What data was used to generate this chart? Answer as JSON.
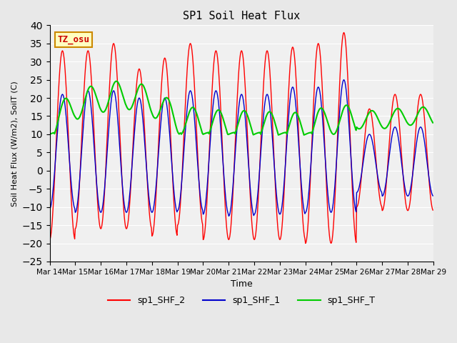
{
  "title": "SP1 Soil Heat Flux",
  "xlabel": "Time",
  "ylabel": "Soil Heat Flux (W/m2), SoilT (C)",
  "ylim": [
    -25,
    40
  ],
  "yticks": [
    -25,
    -20,
    -15,
    -10,
    -5,
    0,
    5,
    10,
    15,
    20,
    25,
    30,
    35,
    40
  ],
  "xtick_labels": [
    "Mar 14",
    "Mar 15",
    "Mar 16",
    "Mar 17",
    "Mar 18",
    "Mar 19",
    "Mar 20",
    "Mar 21",
    "Mar 22",
    "Mar 23",
    "Mar 24",
    "Mar 25",
    "Mar 26",
    "Mar 27",
    "Mar 28",
    "Mar 29"
  ],
  "color_shf2": "#FF0000",
  "color_shf1": "#0000CC",
  "color_shft": "#00CC00",
  "legend_labels": [
    "sp1_SHF_2",
    "sp1_SHF_1",
    "sp1_SHF_T"
  ],
  "tz_label": "TZ_osu",
  "tz_box_facecolor": "#FFFFC0",
  "tz_box_edgecolor": "#CC8800",
  "tz_text_color": "#CC0000",
  "fig_facecolor": "#E8E8E8",
  "ax_facecolor": "#F0F0F0",
  "n_days": 15,
  "n_points_per_day": 48,
  "shf2_peaks": [
    33,
    33,
    35,
    28,
    31,
    35,
    33,
    33,
    33,
    34,
    35,
    38,
    17,
    21,
    21
  ],
  "shf2_troughs": [
    19,
    16,
    16,
    16,
    18,
    15,
    19,
    19,
    19,
    19,
    20,
    20,
    10,
    11,
    11
  ],
  "shf1_peaks": [
    21,
    22,
    22,
    20,
    20,
    22,
    22,
    21,
    21,
    23,
    23,
    25,
    10,
    12,
    12
  ],
  "shf1_troughs": [
    10.5,
    11.5,
    11.5,
    11.5,
    11.5,
    11,
    12,
    12.5,
    12,
    12,
    11.5,
    11.5,
    6,
    7,
    7
  ],
  "shft_base": [
    12.5,
    18,
    20,
    21,
    19,
    14,
    13,
    12.5,
    12.5,
    12,
    12,
    14,
    14,
    14,
    15
  ]
}
